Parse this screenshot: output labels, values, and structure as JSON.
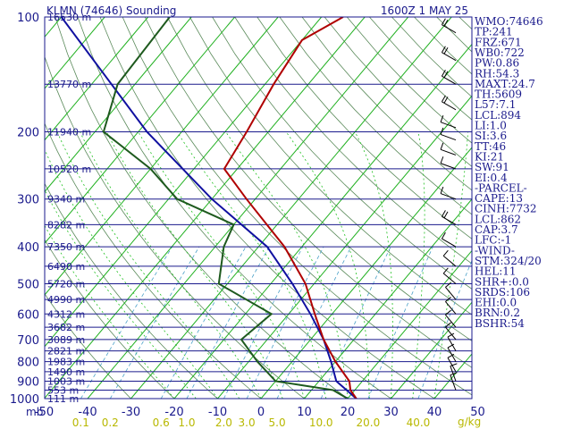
{
  "colors": {
    "background": "#ffffff",
    "text_blue": "#1a1a8c",
    "isobar": "#1a1a8c",
    "isotherm": "#20b020",
    "dry_adiabat": "#5a8a5a",
    "moist_adiabat": "#20c020",
    "mixing_ratio": "#4aa0c8",
    "temperature": "#b00000",
    "dewpoint": "#1e5a1e",
    "parcel": "#1010a0",
    "wind_barb": "#000000",
    "mixing_label": "#b8b800"
  },
  "header": {
    "station": "KLMN (74646) Sounding",
    "time": "1600Z  1 MAY 25"
  },
  "chart_data": {
    "type": "skew-t",
    "x_units": "°C",
    "x_unit_tick": "mb",
    "temperature_axis": [
      -50,
      -40,
      -30,
      -20,
      -10,
      0,
      10,
      20,
      30,
      40,
      50
    ],
    "pressure_axis": [
      100,
      200,
      300,
      400,
      500,
      600,
      700,
      800,
      900,
      1000
    ],
    "pressure_range": [
      100,
      1000
    ],
    "height_labels": [
      {
        "p": 100,
        "label": "16530 m"
      },
      {
        "p": 150,
        "label": "13770 m"
      },
      {
        "p": 200,
        "label": "11940 m"
      },
      {
        "p": 250,
        "label": "10520 m"
      },
      {
        "p": 300,
        "label": "9340 m"
      },
      {
        "p": 350,
        "label": "8282 m"
      },
      {
        "p": 400,
        "label": "7350 m"
      },
      {
        "p": 450,
        "label": "6490 m"
      },
      {
        "p": 500,
        "label": "5720 m"
      },
      {
        "p": 550,
        "label": "4990 m"
      },
      {
        "p": 600,
        "label": "4312 m"
      },
      {
        "p": 650,
        "label": "3682 m"
      },
      {
        "p": 700,
        "label": "3089 m"
      },
      {
        "p": 750,
        "label": "2821 m"
      },
      {
        "p": 800,
        "label": "1983 m"
      },
      {
        "p": 850,
        "label": "1490 m"
      },
      {
        "p": 900,
        "label": "1003 m"
      },
      {
        "p": 950,
        "label": "553 m"
      },
      {
        "p": 1000,
        "label": "111 m"
      }
    ],
    "mixing_ratio_labels": [
      "0.1",
      "0.2",
      "0.6",
      "1.0",
      "2.0",
      "3.0",
      "5.0",
      "10.0",
      "20.0",
      "40.0"
    ],
    "mixing_ratio_unit": "g/kg",
    "temperature_profile": [
      {
        "p": 100,
        "t": -55
      },
      {
        "p": 115,
        "t": -60
      },
      {
        "p": 150,
        "t": -58
      },
      {
        "p": 200,
        "t": -55
      },
      {
        "p": 250,
        "t": -53
      },
      {
        "p": 300,
        "t": -42
      },
      {
        "p": 400,
        "t": -24
      },
      {
        "p": 500,
        "t": -12
      },
      {
        "p": 600,
        "t": -4
      },
      {
        "p": 700,
        "t": 3
      },
      {
        "p": 800,
        "t": 10
      },
      {
        "p": 900,
        "t": 17
      },
      {
        "p": 950,
        "t": 19
      },
      {
        "p": 1000,
        "t": 22
      }
    ],
    "dewpoint_profile": [
      {
        "p": 100,
        "t": -95
      },
      {
        "p": 150,
        "t": -94
      },
      {
        "p": 200,
        "t": -88
      },
      {
        "p": 250,
        "t": -70
      },
      {
        "p": 300,
        "t": -58
      },
      {
        "p": 350,
        "t": -40
      },
      {
        "p": 400,
        "t": -38
      },
      {
        "p": 500,
        "t": -32
      },
      {
        "p": 600,
        "t": -14
      },
      {
        "p": 700,
        "t": -16
      },
      {
        "p": 800,
        "t": -8
      },
      {
        "p": 900,
        "t": 0
      },
      {
        "p": 950,
        "t": 15
      },
      {
        "p": 1000,
        "t": 20
      }
    ],
    "parcel_profile": [
      {
        "p": 100,
        "t": -120
      },
      {
        "p": 200,
        "t": -78
      },
      {
        "p": 300,
        "t": -50
      },
      {
        "p": 400,
        "t": -28
      },
      {
        "p": 500,
        "t": -15
      },
      {
        "p": 600,
        "t": -5
      },
      {
        "p": 700,
        "t": 3
      },
      {
        "p": 800,
        "t": 9
      },
      {
        "p": 900,
        "t": 14
      },
      {
        "p": 1000,
        "t": 22
      }
    ],
    "wind_barbs": [
      {
        "p": 110,
        "dir": 300,
        "spd": 15
      },
      {
        "p": 130,
        "dir": 300,
        "spd": 20
      },
      {
        "p": 150,
        "dir": 300,
        "spd": 20
      },
      {
        "p": 175,
        "dir": 300,
        "spd": 20
      },
      {
        "p": 195,
        "dir": 290,
        "spd": 10
      },
      {
        "p": 210,
        "dir": 290,
        "spd": 10
      },
      {
        "p": 230,
        "dir": 290,
        "spd": 10
      },
      {
        "p": 250,
        "dir": 290,
        "spd": 10
      },
      {
        "p": 300,
        "dir": 290,
        "spd": 10
      },
      {
        "p": 350,
        "dir": 300,
        "spd": 15
      },
      {
        "p": 400,
        "dir": 300,
        "spd": 10
      },
      {
        "p": 450,
        "dir": 310,
        "spd": 10
      },
      {
        "p": 500,
        "dir": 310,
        "spd": 10
      },
      {
        "p": 550,
        "dir": 320,
        "spd": 10
      },
      {
        "p": 600,
        "dir": 320,
        "spd": 10
      },
      {
        "p": 650,
        "dir": 320,
        "spd": 10
      },
      {
        "p": 700,
        "dir": 320,
        "spd": 10
      },
      {
        "p": 750,
        "dir": 330,
        "spd": 10
      },
      {
        "p": 800,
        "dir": 330,
        "spd": 10
      },
      {
        "p": 850,
        "dir": 330,
        "spd": 10
      },
      {
        "p": 900,
        "dir": 340,
        "spd": 10
      },
      {
        "p": 950,
        "dir": 340,
        "spd": 10
      }
    ]
  },
  "stats": [
    "WMO:74646",
    "TP:241",
    "FRZ:671",
    "WB0:722",
    "PW:0.86",
    "RH:54.3",
    "MAXT:24.7",
    "TH:5609",
    "L57:7.1",
    "LCL:894",
    "LI:1.0",
    "SI:3.6",
    "TT:46",
    "KI:21",
    "SW:91",
    "EI:0.4",
    "-PARCEL-",
    "CAPE:13",
    "CINH:7732",
    "LCL:862",
    "CAP:3.7",
    "LFC:-1",
    "-WIND-",
    "STM:324/20",
    "HEL:11",
    "SHR+:0.0",
    "SRDS:106",
    "EHI:0.0",
    "BRN:0.2",
    "BSHR:54"
  ]
}
